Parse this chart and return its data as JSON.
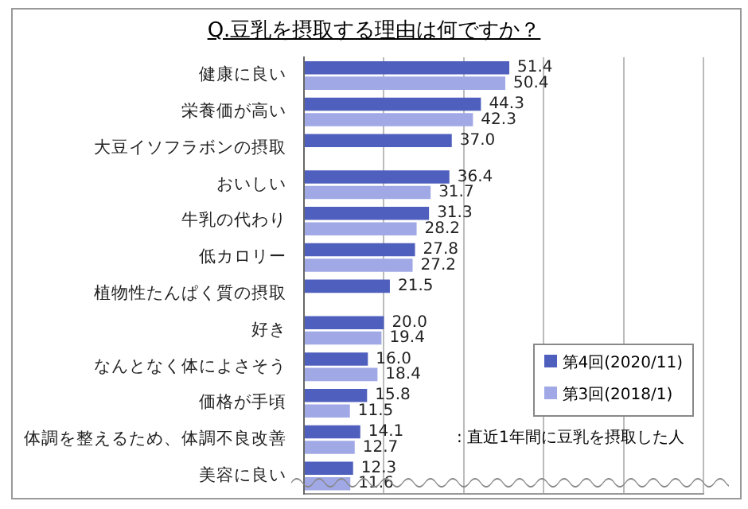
{
  "chart_data": {
    "type": "bar",
    "orientation": "horizontal",
    "title": "Q.豆乳を摂取する理由は何ですか？",
    "categories": [
      "健康に良い",
      "栄養価が高い",
      "大豆イソフラボンの摂取",
      "おいしい",
      "牛乳の代わり",
      "低カロリー",
      "植物性たんぱく質の摂取",
      "好き",
      "なんとなく体によさそう",
      "価格が手頃",
      "体調を整えるため、体調不良改善",
      "美容に良い"
    ],
    "series": [
      {
        "name": "第4回(2020/11)",
        "color": "#4f5fbd",
        "values": [
          51.4,
          44.3,
          37.0,
          36.4,
          31.3,
          27.8,
          21.5,
          20.0,
          16.0,
          15.8,
          14.1,
          12.3
        ],
        "value_labels": [
          "51.4",
          "44.3",
          "37.0",
          "36.4",
          "31.3",
          "27.8",
          "21.5",
          "20.0",
          "16.0",
          "15.8",
          "14.1",
          "12.3"
        ]
      },
      {
        "name": "第3回(2018/1)",
        "color": "#a0a8e6",
        "values": [
          50.4,
          42.3,
          null,
          31.7,
          28.2,
          27.2,
          null,
          19.4,
          18.4,
          11.5,
          12.7,
          11.6
        ],
        "value_labels": [
          "50.4",
          "42.3",
          null,
          "31.7",
          "28.2",
          "27.2",
          null,
          "19.4",
          "18.4",
          "11.5",
          "12.7",
          "11.6"
        ]
      }
    ],
    "xlim": [
      0,
      100
    ],
    "xticks": [
      {
        "value": 0,
        "label": null
      },
      {
        "value": 20,
        "label": null
      },
      {
        "value": 40,
        "label": null
      },
      {
        "value": 60,
        "label": null
      },
      {
        "value": 80,
        "label": null
      },
      {
        "value": 100,
        "label": null
      }
    ],
    "grid": "x",
    "tick_labels": "y",
    "legend": "bottom right",
    "annotations": [
      ": 直近1年間に豆乳を摂取した人"
    ]
  }
}
